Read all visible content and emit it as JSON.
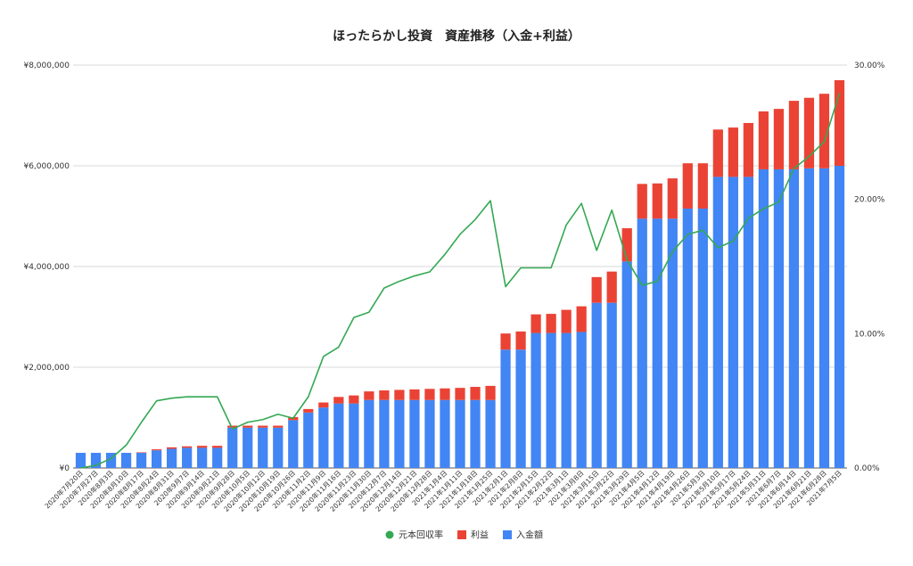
{
  "chart_data": {
    "type": "bar",
    "stacked": true,
    "title": "ほったらかし投資　資産推移（入金+利益）",
    "categories": [
      "2020年7月20日",
      "2020年7月27日",
      "2020年8月3日",
      "2020年8月10日",
      "2020年8月17日",
      "2020年8月24日",
      "2020年8月31日",
      "2020年9月7日",
      "2020年9月14日",
      "2020年9月21日",
      "2020年9月28日",
      "2020年10月5日",
      "2020年10月12日",
      "2020年10月19日",
      "2020年10月26日",
      "2020年11月2日",
      "2020年11月9日",
      "2020年11月16日",
      "2020年11月23日",
      "2020年11月30日",
      "2020年12月7日",
      "2020年12月14日",
      "2020年12月21日",
      "2020年12月28日",
      "2021年1月4日",
      "2021年1月11日",
      "2021年1月18日",
      "2021年1月25日",
      "2021年2月1日",
      "2021年2月8日",
      "2021年2月15日",
      "2021年2月22日",
      "2021年3月1日",
      "2021年3月8日",
      "2021年3月15日",
      "2021年3月22日",
      "2021年3月29日",
      "2021年4月5日",
      "2021年4月12日",
      "2021年4月19日",
      "2021年4月26日",
      "2021年5月3日",
      "2021年5月10日",
      "2021年5月17日",
      "2021年5月24日",
      "2021年5月31日",
      "2021年6月7日",
      "2021年6月14日",
      "2021年6月21日",
      "2021年6月28日",
      "2021年7月5日"
    ],
    "series": [
      {
        "name": "入金額",
        "kind": "bar",
        "axis": "left",
        "color": "#4285f4",
        "values": [
          300000,
          300000,
          300000,
          300000,
          300000,
          350000,
          380000,
          400000,
          400000,
          400000,
          800000,
          800000,
          800000,
          800000,
          950000,
          1100000,
          1200000,
          1280000,
          1280000,
          1350000,
          1350000,
          1350000,
          1350000,
          1350000,
          1350000,
          1350000,
          1350000,
          1350000,
          2350000,
          2350000,
          2680000,
          2680000,
          2680000,
          2700000,
          3280000,
          3280000,
          4100000,
          4950000,
          4950000,
          4950000,
          5150000,
          5150000,
          5780000,
          5780000,
          5780000,
          5930000,
          5930000,
          5930000,
          5950000,
          5950000,
          6000000
        ]
      },
      {
        "name": "利益",
        "kind": "bar",
        "axis": "left",
        "color": "#ea4335",
        "values": [
          0,
          0,
          0,
          0,
          10000,
          20000,
          30000,
          30000,
          40000,
          40000,
          40000,
          40000,
          40000,
          40000,
          60000,
          70000,
          100000,
          130000,
          160000,
          170000,
          190000,
          200000,
          210000,
          220000,
          230000,
          240000,
          260000,
          280000,
          320000,
          360000,
          370000,
          380000,
          460000,
          510000,
          510000,
          620000,
          660000,
          690000,
          700000,
          800000,
          900000,
          900000,
          940000,
          980000,
          1070000,
          1150000,
          1200000,
          1360000,
          1400000,
          1480000,
          1700000
        ]
      },
      {
        "name": "元本回収率",
        "kind": "line",
        "axis": "right",
        "color": "#34a853",
        "values": [
          0.0,
          0.2,
          0.7,
          1.7,
          3.4,
          5.0,
          5.2,
          5.3,
          5.3,
          5.3,
          2.9,
          3.4,
          3.6,
          4.0,
          3.7,
          5.3,
          8.3,
          9.0,
          11.2,
          11.6,
          13.4,
          13.9,
          14.3,
          14.6,
          15.9,
          17.4,
          18.5,
          19.9,
          13.5,
          14.9,
          14.9,
          14.9,
          18.1,
          19.7,
          16.2,
          19.2,
          15.5,
          13.6,
          13.9,
          16.1,
          17.4,
          17.7,
          16.4,
          16.9,
          18.6,
          19.3,
          19.8,
          22.3,
          23.2,
          24.3,
          27.9
        ]
      }
    ],
    "yleft": {
      "min": 0,
      "max": 8000000,
      "ticks": [
        "¥0",
        "¥2,000,000",
        "¥4,000,000",
        "¥6,000,000",
        "¥8,000,000"
      ]
    },
    "yright": {
      "min": 0,
      "max": 30,
      "ticks": [
        "0.00%",
        "10.00%",
        "20.00%",
        "30.00%"
      ]
    },
    "grid": true,
    "legend_position": "bottom",
    "legend": [
      {
        "label": "元本回収率",
        "color": "#34a853",
        "shape": "circle"
      },
      {
        "label": "利益",
        "color": "#ea4335",
        "shape": "square"
      },
      {
        "label": "入金額",
        "color": "#4285f4",
        "shape": "square"
      }
    ]
  }
}
